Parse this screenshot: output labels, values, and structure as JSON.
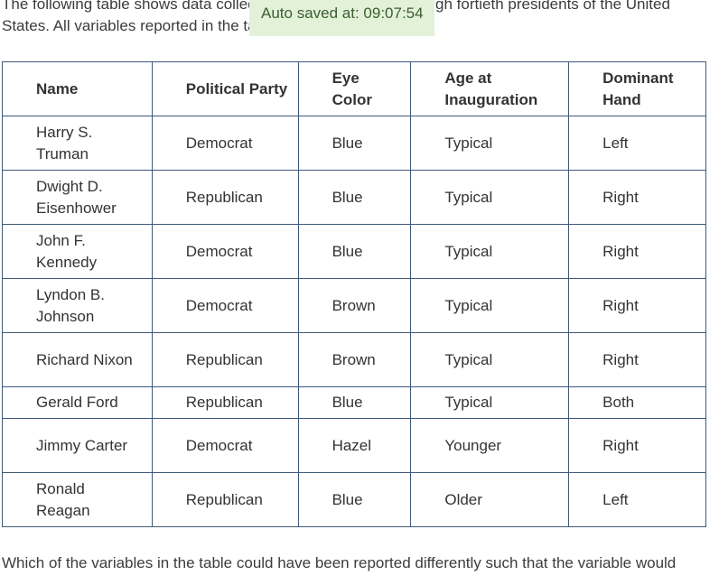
{
  "intro_text": "The following table shows data collected on the thirty-third through fortieth presidents of the United States. All variables reported in the table are categorical.",
  "autosave": "Auto saved at: 09:07:54",
  "table": {
    "headers": [
      "Name",
      "Political Party",
      "Eye Color",
      "Age at Inauguration",
      "Dominant Hand"
    ],
    "rows": [
      [
        "Harry S. Truman",
        "Democrat",
        "Blue",
        "Typical",
        "Left"
      ],
      [
        "Dwight D. Eisenhower",
        "Republican",
        "Blue",
        "Typical",
        "Right"
      ],
      [
        "John F. Kennedy",
        "Democrat",
        "Blue",
        "Typical",
        "Right"
      ],
      [
        "Lyndon B. Johnson",
        "Democrat",
        "Brown",
        "Typical",
        "Right"
      ],
      [
        "Richard Nixon",
        "Republican",
        "Brown",
        "Typical",
        "Right"
      ],
      [
        "Gerald Ford",
        "Republican",
        "Blue",
        "Typical",
        "Both"
      ],
      [
        "Jimmy Carter",
        "Democrat",
        "Hazel",
        "Younger",
        "Right"
      ],
      [
        "Ronald Reagan",
        "Republican",
        "Blue",
        "Older",
        "Left"
      ]
    ]
  },
  "question_text": "Which of the variables in the table could have been reported differently such that the variable would"
}
